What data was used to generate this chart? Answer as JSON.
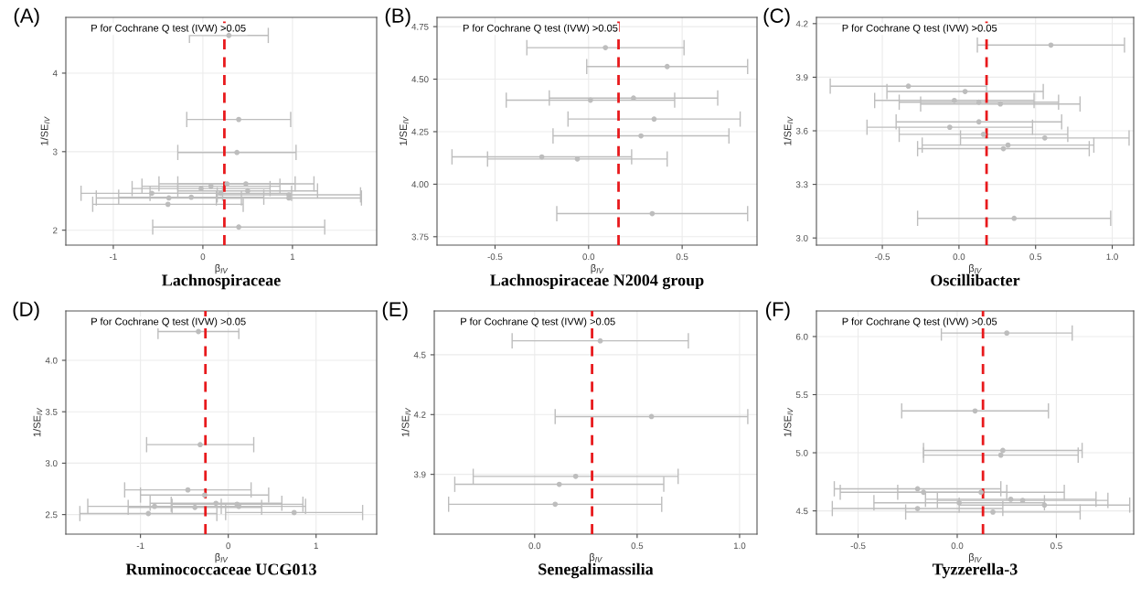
{
  "chart_data": [
    {
      "type": "scatter",
      "title": "Lachnospiraceae",
      "xlabel": "β$_{IV}$",
      "ylabel": "1/SE$_{IV}$",
      "annotations": [
        "(A)",
        "P for Cochrane Q test (IVW) >0.05"
      ],
      "grid": true,
      "marker": "circle",
      "xlim": [
        -1.53,
        1.94
      ],
      "xticks": [
        -1,
        0,
        1
      ],
      "ylim": [
        1.81,
        4.71
      ],
      "yticks": [
        2,
        3,
        4
      ],
      "ref_lines": [
        {
          "axis": "x",
          "value": 0.24,
          "color": "#e8191c",
          "line_style": "dashed"
        }
      ],
      "series": [
        {
          "color": "#bdbdbd",
          "x": [
            0.29,
            0.4,
            0.38,
            0.4,
            0.27,
            0.48,
            0.09,
            -0.02,
            0.5,
            -0.57,
            0.2,
            0.96,
            -0.13,
            -0.38,
            0.96,
            -0.39
          ],
          "values": [
            4.48,
            3.41,
            2.99,
            2.04,
            2.59,
            2.59,
            2.56,
            2.53,
            2.5,
            2.47,
            2.47,
            2.45,
            2.42,
            2.41,
            2.41,
            2.33
          ],
          "xerrors": [
            0.44,
            0.58,
            0.66,
            0.96,
            0.76,
            0.76,
            0.77,
            0.77,
            0.78,
            0.79,
            0.79,
            0.8,
            0.81,
            0.81,
            0.81,
            0.84
          ]
        }
      ]
    },
    {
      "type": "scatter",
      "title": "Lachnospiraceae N2004 group",
      "xlabel": "β$_{IV}$",
      "ylabel": "1/SE$_{IV}$",
      "annotations": [
        "(B)",
        "P for Cochrane Q test (IVW) >0.05"
      ],
      "grid": true,
      "marker": "circle",
      "xlim": [
        -0.81,
        0.9
      ],
      "xticks": [
        {
          "value": -0.5,
          "label": "-0.5"
        },
        {
          "value": 0,
          "label": "0.0"
        },
        {
          "value": 0.5,
          "label": "0.5"
        }
      ],
      "ylim": [
        3.71,
        4.794
      ],
      "yticks": [
        {
          "value": 3.75,
          "label": "3.75"
        },
        {
          "value": 4,
          "label": "4.00"
        },
        {
          "value": 4.25,
          "label": "4.25"
        },
        {
          "value": 4.5,
          "label": "4.50"
        },
        {
          "value": 4.75,
          "label": "4.75"
        }
      ],
      "ref_lines": [
        {
          "axis": "x",
          "value": 0.16,
          "color": "#e8191c",
          "line_style": "dashed"
        }
      ],
      "series": [
        {
          "color": "#bdbdbd",
          "x": [
            0.09,
            0.42,
            0.01,
            0.24,
            0.35,
            0.28,
            -0.25,
            -0.06,
            0.34
          ],
          "values": [
            4.65,
            4.56,
            4.4,
            4.41,
            4.31,
            4.23,
            4.13,
            4.12,
            3.86
          ],
          "xerrors": [
            0.42,
            0.43,
            0.45,
            0.45,
            0.46,
            0.47,
            0.48,
            0.48,
            0.51
          ]
        }
      ]
    },
    {
      "type": "scatter",
      "title": "Oscillibacter",
      "xlabel": "β$_{IV}$",
      "ylabel": "1/SE$_{IV}$",
      "annotations": [
        "(C)",
        "P for Cochrane Q test (IVW) >0.05"
      ],
      "grid": true,
      "marker": "circle",
      "xlim": [
        -0.93,
        1.14
      ],
      "xticks": [
        {
          "value": -0.5,
          "label": "-0.5"
        },
        {
          "value": 0,
          "label": "0.0"
        },
        {
          "value": 0.5,
          "label": "0.5"
        },
        {
          "value": 1,
          "label": "1.0"
        }
      ],
      "ylim": [
        2.96,
        4.235
      ],
      "yticks": [
        {
          "value": 3,
          "label": "3.0"
        },
        3.3,
        3.6,
        3.9,
        4.2
      ],
      "ref_lines": [
        {
          "axis": "x",
          "value": 0.18,
          "color": "#e8191c",
          "line_style": "dashed"
        }
      ],
      "series": [
        {
          "color": "#bdbdbd",
          "x": [
            0.6,
            -0.33,
            0.04,
            -0.03,
            0.13,
            0.27,
            0.13,
            -0.06,
            0.16,
            0.56,
            0.32,
            0.29,
            0.36
          ],
          "values": [
            4.08,
            3.85,
            3.82,
            3.77,
            3.76,
            3.75,
            3.65,
            3.62,
            3.58,
            3.56,
            3.52,
            3.5,
            3.11
          ],
          "xerrors": [
            0.48,
            0.51,
            0.51,
            0.52,
            0.52,
            0.52,
            0.54,
            0.54,
            0.55,
            0.55,
            0.56,
            0.56,
            0.63
          ]
        }
      ]
    },
    {
      "type": "scatter",
      "title": "Ruminococcaceae UCG013",
      "xlabel": "β$_{IV}$",
      "ylabel": "1/SE$_{IV}$",
      "annotations": [
        "(D)",
        "P for Cochrane Q test (IVW) >0.05"
      ],
      "grid": true,
      "marker": "circle",
      "xlim": [
        -1.85,
        1.69
      ],
      "xticks": [
        -1,
        0,
        1
      ],
      "ylim": [
        2.31,
        4.48
      ],
      "yticks": [
        2.5,
        {
          "value": 3,
          "label": "3.0"
        },
        3.5,
        {
          "value": 4,
          "label": "4.0"
        }
      ],
      "ref_lines": [
        {
          "axis": "x",
          "value": -0.26,
          "color": "#e8191c",
          "line_style": "dashed"
        }
      ],
      "series": [
        {
          "color": "#bdbdbd",
          "x": [
            -0.34,
            -0.32,
            -0.46,
            -0.27,
            -0.14,
            0.1,
            0.12,
            -0.84,
            -0.38,
            0.75,
            -0.91
          ],
          "values": [
            4.28,
            3.18,
            2.74,
            2.69,
            2.61,
            2.6,
            2.58,
            2.58,
            2.57,
            2.52,
            2.51
          ],
          "xerrors": [
            0.46,
            0.61,
            0.72,
            0.73,
            0.75,
            0.75,
            0.76,
            0.76,
            0.76,
            0.78,
            0.78
          ]
        }
      ]
    },
    {
      "type": "scatter",
      "title": "Senegalimassilia",
      "xlabel": "β$_{IV}$",
      "ylabel": "1/SE$_{IV}$",
      "annotations": [
        "(E)",
        "P for Cochrane Q test (IVW) >0.05"
      ],
      "grid": true,
      "marker": "circle",
      "xlim": [
        -0.49,
        1.085
      ],
      "xticks": [
        {
          "value": 0,
          "label": "0.0"
        },
        0.5,
        {
          "value": 1,
          "label": "1.0"
        }
      ],
      "ylim": [
        3.6,
        4.72
      ],
      "yticks": [
        3.9,
        4.2,
        4.5
      ],
      "ref_lines": [
        {
          "axis": "x",
          "value": 0.28,
          "color": "#e8191c",
          "line_style": "dashed"
        }
      ],
      "series": [
        {
          "color": "#bdbdbd",
          "x": [
            0.32,
            0.57,
            0.2,
            0.12,
            0.1
          ],
          "values": [
            4.57,
            4.19,
            3.89,
            3.85,
            3.75
          ],
          "xerrors": [
            0.43,
            0.47,
            0.5,
            0.51,
            0.52
          ]
        }
      ]
    },
    {
      "type": "scatter",
      "title": "Tyzzerella-3",
      "xlabel": "β$_{IV}$",
      "ylabel": "1/SE$_{IV}$",
      "annotations": [
        "(F)",
        "P for Cochrane Q test (IVW) >0.05"
      ],
      "grid": true,
      "marker": "circle",
      "xlim": [
        -0.71,
        0.89
      ],
      "xticks": [
        {
          "value": -0.5,
          "label": "-0.5"
        },
        {
          "value": 0,
          "label": "0.0"
        },
        0.5
      ],
      "ylim": [
        4.3,
        6.22
      ],
      "yticks": [
        4.5,
        {
          "value": 5,
          "label": "5.0"
        },
        5.5,
        {
          "value": 6,
          "label": "6.0"
        }
      ],
      "ref_lines": [
        {
          "axis": "x",
          "value": 0.13,
          "color": "#e8191c",
          "line_style": "dashed"
        }
      ],
      "series": [
        {
          "color": "#bdbdbd",
          "x": [
            0.25,
            0.09,
            0.23,
            0.22,
            -0.2,
            -0.17,
            0.12,
            0.27,
            0.33,
            0.01,
            0.44,
            -0.2,
            0.18
          ],
          "values": [
            6.03,
            5.36,
            5.02,
            4.98,
            4.69,
            4.66,
            4.66,
            4.6,
            4.59,
            4.57,
            4.55,
            4.52,
            4.49
          ],
          "xerrors": [
            0.33,
            0.37,
            0.4,
            0.39,
            0.42,
            0.42,
            0.42,
            0.43,
            0.43,
            0.43,
            0.43,
            0.43,
            0.44
          ]
        }
      ]
    }
  ]
}
